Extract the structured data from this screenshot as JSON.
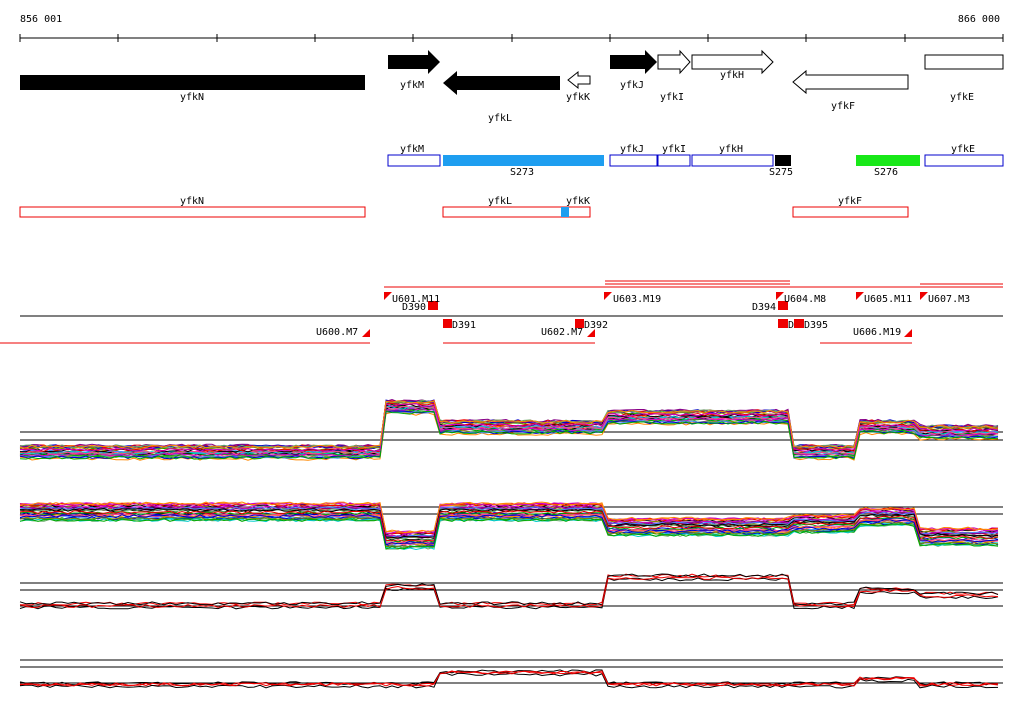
{
  "axis": {
    "start": "856 001",
    "end": "866 000"
  },
  "genes": [
    "yfkN",
    "yfkM",
    "yfkL",
    "yfkK",
    "yfkJ",
    "yfkI",
    "yfkH",
    "yfkF",
    "yfkE"
  ],
  "segments": [
    "yfkM",
    "S273",
    "yfkJ",
    "yfkI",
    "yfkH",
    "S275",
    "S276",
    "yfkE"
  ],
  "antisense": [
    "yfkN",
    "yfkL",
    "yfkK",
    "yfkF"
  ],
  "markers": [
    "U601.M11",
    "D390",
    "U603.M19",
    "D394",
    "U604.M8",
    "U605.M11",
    "U607.M3",
    "U600.M7",
    "D391",
    "U602.M7",
    "D392",
    "D",
    "D395",
    "U606.M19"
  ]
}
